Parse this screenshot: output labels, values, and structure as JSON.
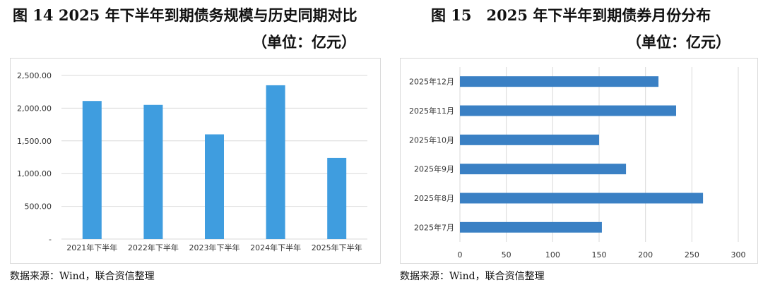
{
  "left": {
    "title": "图 14 2025 年下半年到期债务规模与历史同期对比",
    "unit": "（单位：亿元）",
    "source": "数据来源：Wind，联合资信整理",
    "colors": {
      "bar": "#3f9ddf",
      "grid": "#d9d9d9"
    }
  },
  "right": {
    "title": "图 15　2025 年下半年到期债券月份分布",
    "unit": "（单位：亿元）",
    "source": "数据来源：Wind，联合资信整理",
    "colors": {
      "bar": "#3a80c4",
      "grid": "#d9d9d9"
    }
  },
  "chart_data": [
    {
      "type": "bar",
      "categories": [
        "2021年下半年",
        "2022年下半年",
        "2023年下半年",
        "2024年下半年",
        "2025年下半年"
      ],
      "values": [
        2110,
        2050,
        1600,
        2350,
        1240
      ],
      "ylim": [
        0,
        2500
      ],
      "yticks": [
        0,
        500,
        1000,
        1500,
        2000,
        2500
      ],
      "ytick_labels": [
        "-",
        "500.00",
        "1,000.00",
        "1,500.00",
        "2,000.00",
        "2,500.00"
      ],
      "grid": true
    },
    {
      "type": "bar",
      "orientation": "horizontal",
      "categories": [
        "2025年12月",
        "2025年11月",
        "2025年10月",
        "2025年9月",
        "2025年8月",
        "2025年7月"
      ],
      "values": [
        214,
        233,
        150,
        179,
        262,
        153
      ],
      "xlim": [
        0,
        300
      ],
      "xticks": [
        0,
        50,
        100,
        150,
        200,
        250,
        300
      ],
      "grid": true
    }
  ]
}
